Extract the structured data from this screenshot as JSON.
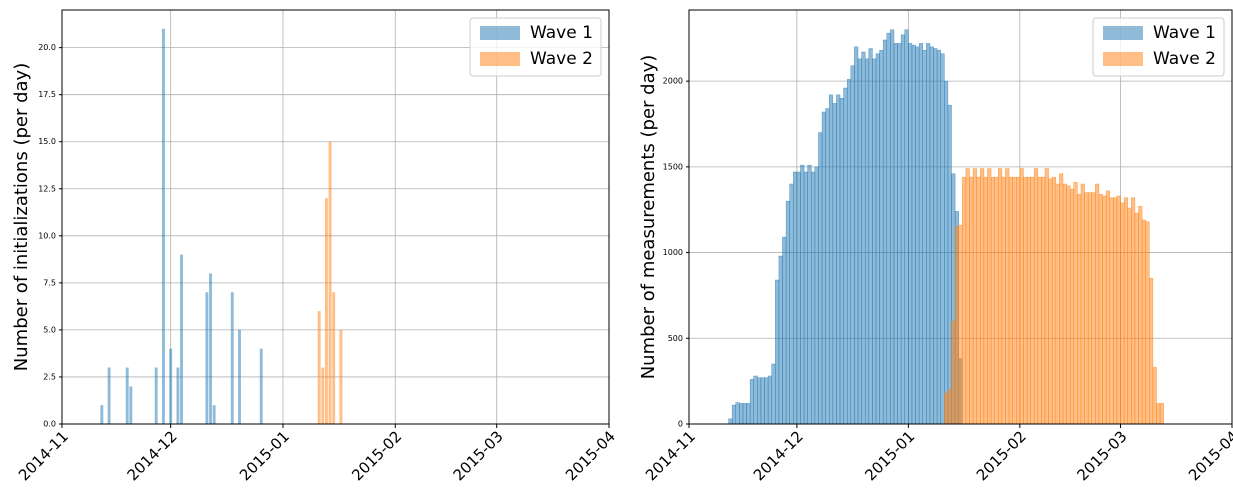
{
  "chart_data": [
    {
      "type": "bar",
      "ylabel": "Number of initializations (per day)",
      "xlim": [
        0,
        151
      ],
      "xticks": [
        {
          "value": 0,
          "label": "2014-11"
        },
        {
          "value": 30,
          "label": "2014-12"
        },
        {
          "value": 61,
          "label": "2015-01"
        },
        {
          "value": 92,
          "label": "2015-02"
        },
        {
          "value": 120,
          "label": "2015-03"
        },
        {
          "value": 151,
          "label": "2015-04"
        }
      ],
      "ylim": [
        0,
        22
      ],
      "yticks": [
        {
          "value": 0,
          "label": "0.0"
        },
        {
          "value": 2.5,
          "label": "2.5"
        },
        {
          "value": 5,
          "label": "5.0"
        },
        {
          "value": 7.5,
          "label": "7.5"
        },
        {
          "value": 10,
          "label": "10.0"
        },
        {
          "value": 12.5,
          "label": "12.5"
        },
        {
          "value": 15,
          "label": "15.0"
        },
        {
          "value": 17.5,
          "label": "17.5"
        },
        {
          "value": 20,
          "label": "20.0"
        }
      ],
      "grid": true,
      "legend": "upper-right",
      "series": [
        {
          "name": "Wave 1",
          "color": "#1f77b4",
          "x": [
            11,
            13,
            18,
            19,
            26,
            28,
            30,
            32,
            33,
            40,
            41,
            42,
            47,
            49,
            55
          ],
          "values": [
            1,
            3,
            3,
            2,
            3,
            21,
            4,
            3,
            9,
            7,
            8,
            1,
            7,
            5,
            4
          ]
        },
        {
          "name": "Wave 2",
          "color": "#ff7f0e",
          "x": [
            71,
            72,
            73,
            74,
            75,
            77
          ],
          "values": [
            6,
            3,
            12,
            15,
            7,
            5
          ]
        }
      ]
    },
    {
      "type": "bar",
      "ylabel": "Number of measurements (per day)",
      "xlim": [
        0,
        151
      ],
      "xticks": [
        {
          "value": 0,
          "label": "2014-11"
        },
        {
          "value": 30,
          "label": "2014-12"
        },
        {
          "value": 61,
          "label": "2015-01"
        },
        {
          "value": 92,
          "label": "2015-02"
        },
        {
          "value": 120,
          "label": "2015-03"
        },
        {
          "value": 151,
          "label": "2015-04"
        }
      ],
      "ylim": [
        0,
        2415
      ],
      "yticks": [
        0,
        500,
        1000,
        1500,
        2000
      ],
      "grid": true,
      "legend": "upper-right",
      "series": [
        {
          "name": "Wave 1",
          "color": "#1f77b4",
          "x": [
            11,
            12,
            13,
            14,
            15,
            16,
            17,
            18,
            19,
            20,
            21,
            22,
            23,
            24,
            25,
            26,
            27,
            28,
            29,
            30,
            31,
            32,
            33,
            34,
            35,
            36,
            37,
            38,
            39,
            40,
            41,
            42,
            43,
            44,
            45,
            46,
            47,
            48,
            49,
            50,
            51,
            52,
            53,
            54,
            55,
            56,
            57,
            58,
            59,
            60,
            61,
            62,
            63,
            64,
            65,
            66,
            67,
            68,
            69,
            70,
            71,
            72,
            73,
            74,
            75
          ],
          "values": [
            30,
            110,
            125,
            120,
            120,
            120,
            260,
            280,
            270,
            270,
            270,
            280,
            350,
            840,
            980,
            1090,
            1300,
            1400,
            1470,
            1470,
            1510,
            1470,
            1510,
            1470,
            1500,
            1700,
            1820,
            1840,
            1920,
            1870,
            1920,
            1900,
            1960,
            2010,
            2090,
            2200,
            2130,
            2170,
            2130,
            2190,
            2130,
            2160,
            2180,
            2240,
            2280,
            2300,
            2220,
            2220,
            2270,
            2300,
            2220,
            2210,
            2200,
            2220,
            2180,
            2220,
            2200,
            2190,
            2180,
            2160,
            2000,
            1860,
            1460,
            1240,
            380
          ]
        },
        {
          "name": "Wave 2",
          "color": "#ff7f0e",
          "x": [
            71,
            72,
            73,
            74,
            75,
            76,
            77,
            78,
            79,
            80,
            81,
            82,
            83,
            84,
            85,
            86,
            87,
            88,
            89,
            90,
            91,
            92,
            93,
            94,
            95,
            96,
            97,
            98,
            99,
            100,
            101,
            102,
            103,
            104,
            105,
            106,
            107,
            108,
            109,
            110,
            111,
            112,
            113,
            114,
            115,
            116,
            117,
            118,
            119,
            120,
            121,
            122,
            123,
            124,
            125,
            126,
            127,
            128,
            129,
            130,
            131
          ],
          "values": [
            180,
            200,
            600,
            1150,
            1160,
            1440,
            1490,
            1440,
            1490,
            1440,
            1490,
            1440,
            1490,
            1440,
            1440,
            1490,
            1440,
            1490,
            1440,
            1440,
            1440,
            1490,
            1440,
            1440,
            1440,
            1490,
            1440,
            1440,
            1490,
            1430,
            1440,
            1400,
            1460,
            1400,
            1390,
            1370,
            1410,
            1340,
            1400,
            1350,
            1350,
            1350,
            1400,
            1340,
            1330,
            1360,
            1320,
            1320,
            1330,
            1290,
            1320,
            1260,
            1320,
            1230,
            1270,
            1190,
            1180,
            850,
            330,
            120,
            120
          ]
        }
      ]
    }
  ]
}
